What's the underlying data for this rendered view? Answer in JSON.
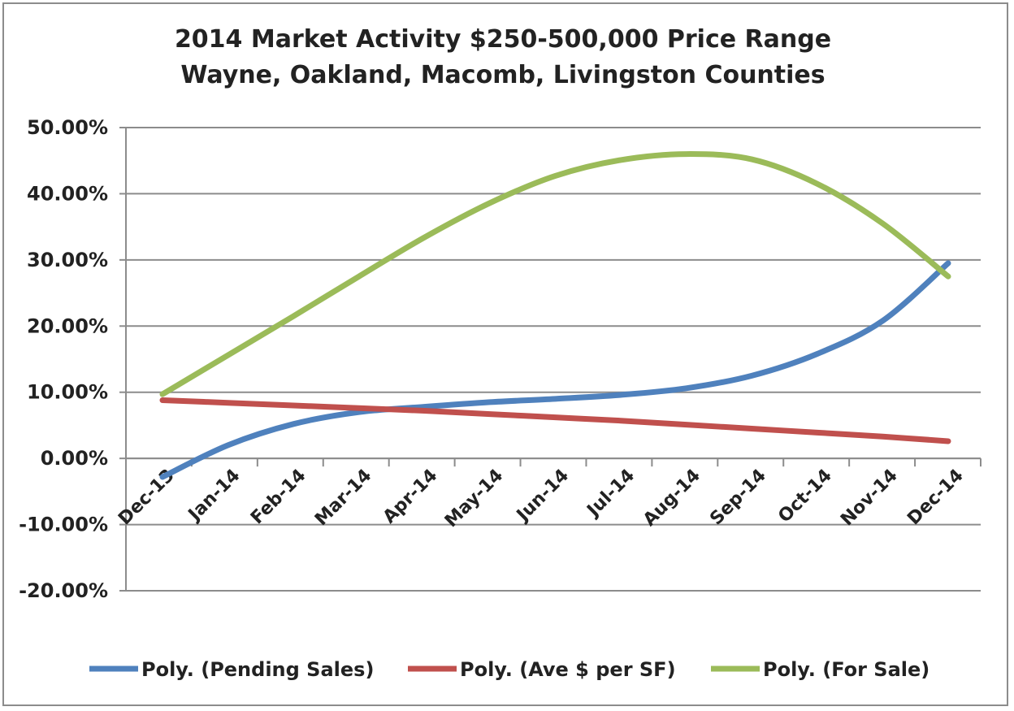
{
  "chart_data": {
    "type": "line",
    "title": "2014 Market Activity $250-500,000 Price Range",
    "subtitle": "Wayne, Oakland, Macomb, Livingston Counties",
    "xlabel": "",
    "ylabel": "",
    "categories": [
      "Dec-13",
      "Jan-14",
      "Feb-14",
      "Mar-14",
      "Apr-14",
      "May-14",
      "Jun-14",
      "Jul-14",
      "Aug-14",
      "Sep-14",
      "Oct-14",
      "Nov-14",
      "Dec-14"
    ],
    "y_ticks": [
      "50.00%",
      "40.00%",
      "30.00%",
      "20.00%",
      "10.00%",
      "0.00%",
      "-10.00%",
      "-20.00%"
    ],
    "ylim": [
      -20,
      50
    ],
    "grid": true,
    "legend_position": "bottom",
    "series": [
      {
        "name": "Poly. (Pending Sales)",
        "color": "#4f81bd",
        "values": [
          -2.8,
          2.0,
          5.2,
          7.0,
          7.8,
          8.5,
          9.0,
          9.6,
          10.6,
          12.5,
          15.8,
          20.8,
          29.5
        ]
      },
      {
        "name": "Poly. (Ave $ per SF)",
        "color": "#c0504d",
        "values": [
          8.8,
          8.4,
          8.0,
          7.6,
          7.2,
          6.7,
          6.2,
          5.7,
          5.1,
          4.5,
          3.9,
          3.3,
          2.6
        ]
      },
      {
        "name": "Poly. (For Sale)",
        "color": "#9bbb59",
        "values": [
          9.7,
          15.6,
          21.5,
          27.5,
          33.4,
          38.6,
          42.7,
          45.1,
          46.0,
          45.2,
          41.5,
          35.5,
          27.5
        ]
      }
    ]
  }
}
